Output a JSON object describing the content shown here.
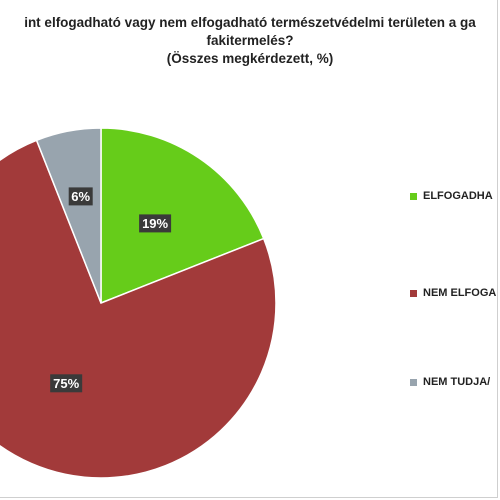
{
  "chart_data": {
    "type": "pie",
    "title": "int elfogadható vagy nem elfogadható természetvédelmi területen a ga",
    "title_line2": "fakitermelés?",
    "subtitle": "(Összes megkérdezett, %)",
    "categories": [
      "ELFOGADHA",
      "NEM ELFOGA",
      "NEM TUDJA/"
    ],
    "values": [
      19,
      75,
      6
    ],
    "data_labels": [
      "19%",
      "75%",
      "6%"
    ],
    "colors": [
      "#66cc1a",
      "#a23a3a",
      "#98a4ae"
    ],
    "start_angle_deg": 0,
    "direction": "clockwise",
    "legend_position": "right"
  }
}
